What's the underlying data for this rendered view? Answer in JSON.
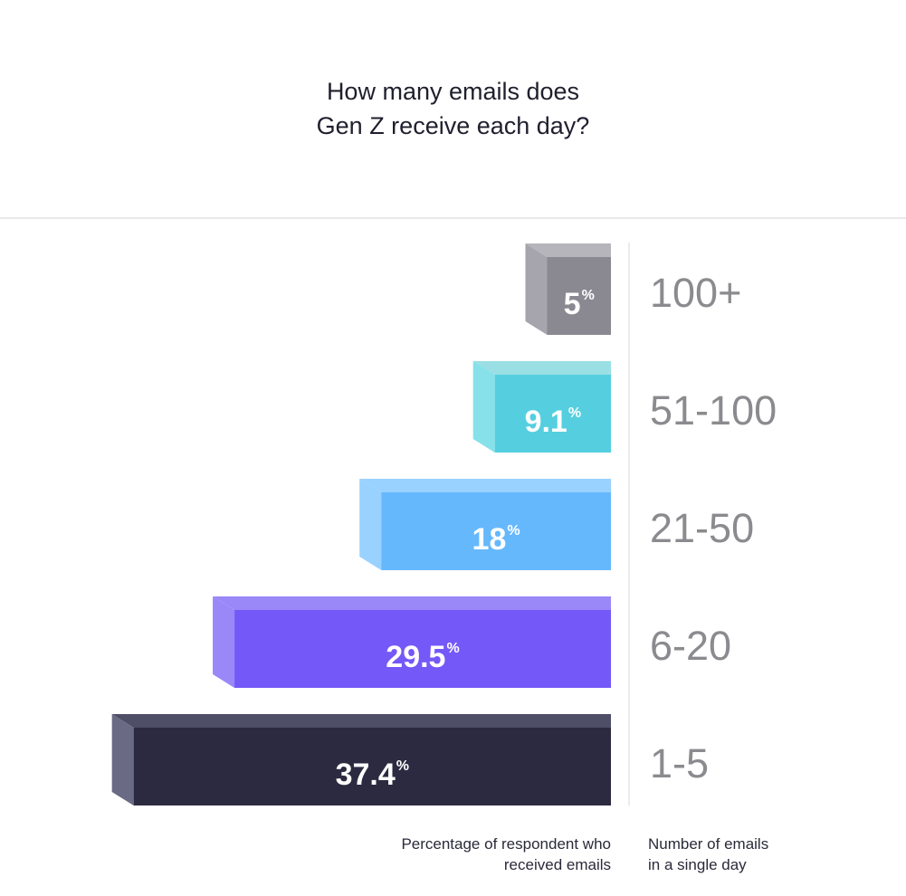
{
  "chart_data": {
    "type": "bar",
    "orientation": "horizontal",
    "title_lines": [
      "How many emails does",
      "Gen Z receive each day?"
    ],
    "categories": [
      "100+",
      "51-100",
      "21-50",
      "6-20",
      "1-5"
    ],
    "values": [
      5,
      9.1,
      18,
      29.5,
      37.4
    ],
    "value_labels": [
      "5",
      "9.1",
      "18",
      "29.5",
      "37.4"
    ],
    "unit_symbol": "%",
    "xlabel_lines": [
      "Percentage of respondent who",
      "received emails"
    ],
    "ylabel_lines": [
      "Number of emails",
      "in a single day"
    ],
    "colors": [
      {
        "front": "#8a8992",
        "side": "#a6a5ad",
        "top": "#b6b5bc"
      },
      {
        "front": "#55cfdf",
        "side": "#86e1ea",
        "top": "#9adfe3"
      },
      {
        "front": "#66b8fd",
        "side": "#99d2ff",
        "top": "#99d2ff"
      },
      {
        "front": "#7458f8",
        "side": "#9a88f8",
        "top": "#9a88f8"
      },
      {
        "front": "#2c2a40",
        "side": "#6a6a84",
        "top": "#4f4e67"
      }
    ],
    "grid": false,
    "legend": "none"
  }
}
